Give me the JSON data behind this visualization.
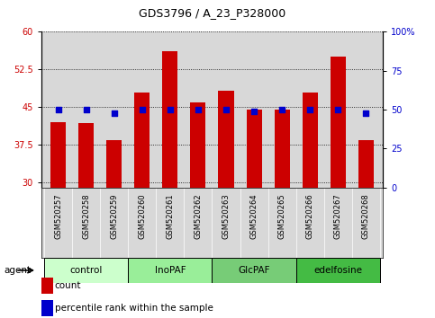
{
  "title": "GDS3796 / A_23_P328000",
  "samples": [
    "GSM520257",
    "GSM520258",
    "GSM520259",
    "GSM520260",
    "GSM520261",
    "GSM520262",
    "GSM520263",
    "GSM520264",
    "GSM520265",
    "GSM520266",
    "GSM520267",
    "GSM520268"
  ],
  "bar_values": [
    42.0,
    41.8,
    38.5,
    48.0,
    56.2,
    46.0,
    48.2,
    44.5,
    44.5,
    48.0,
    55.0,
    38.5
  ],
  "blue_pct": [
    50,
    50,
    48,
    50,
    50,
    50,
    50,
    49,
    50,
    50,
    50,
    48
  ],
  "ylim_left": [
    29,
    60
  ],
  "ylim_right": [
    0,
    100
  ],
  "yticks_left": [
    30,
    37.5,
    45,
    52.5,
    60
  ],
  "yticks_right": [
    0,
    25,
    50,
    75,
    100
  ],
  "bar_color": "#cc0000",
  "blue_color": "#0000cc",
  "groups": [
    {
      "label": "control",
      "start": 0,
      "end": 3,
      "color": "#ccffcc"
    },
    {
      "label": "InoPAF",
      "start": 3,
      "end": 6,
      "color": "#99ee99"
    },
    {
      "label": "GlcPAF",
      "start": 6,
      "end": 9,
      "color": "#77cc77"
    },
    {
      "label": "edelfosine",
      "start": 9,
      "end": 12,
      "color": "#44bb44"
    }
  ],
  "legend_count_label": "count",
  "legend_pct_label": "percentile rank within the sample",
  "agent_label": "agent",
  "axis_bg": "#d8d8d8",
  "ylabel_right_color": "#0000cc",
  "ylabel_left_color": "#cc0000",
  "title_fontsize": 9,
  "tick_fontsize": 7,
  "sample_fontsize": 6,
  "group_fontsize": 7.5,
  "legend_fontsize": 7.5
}
